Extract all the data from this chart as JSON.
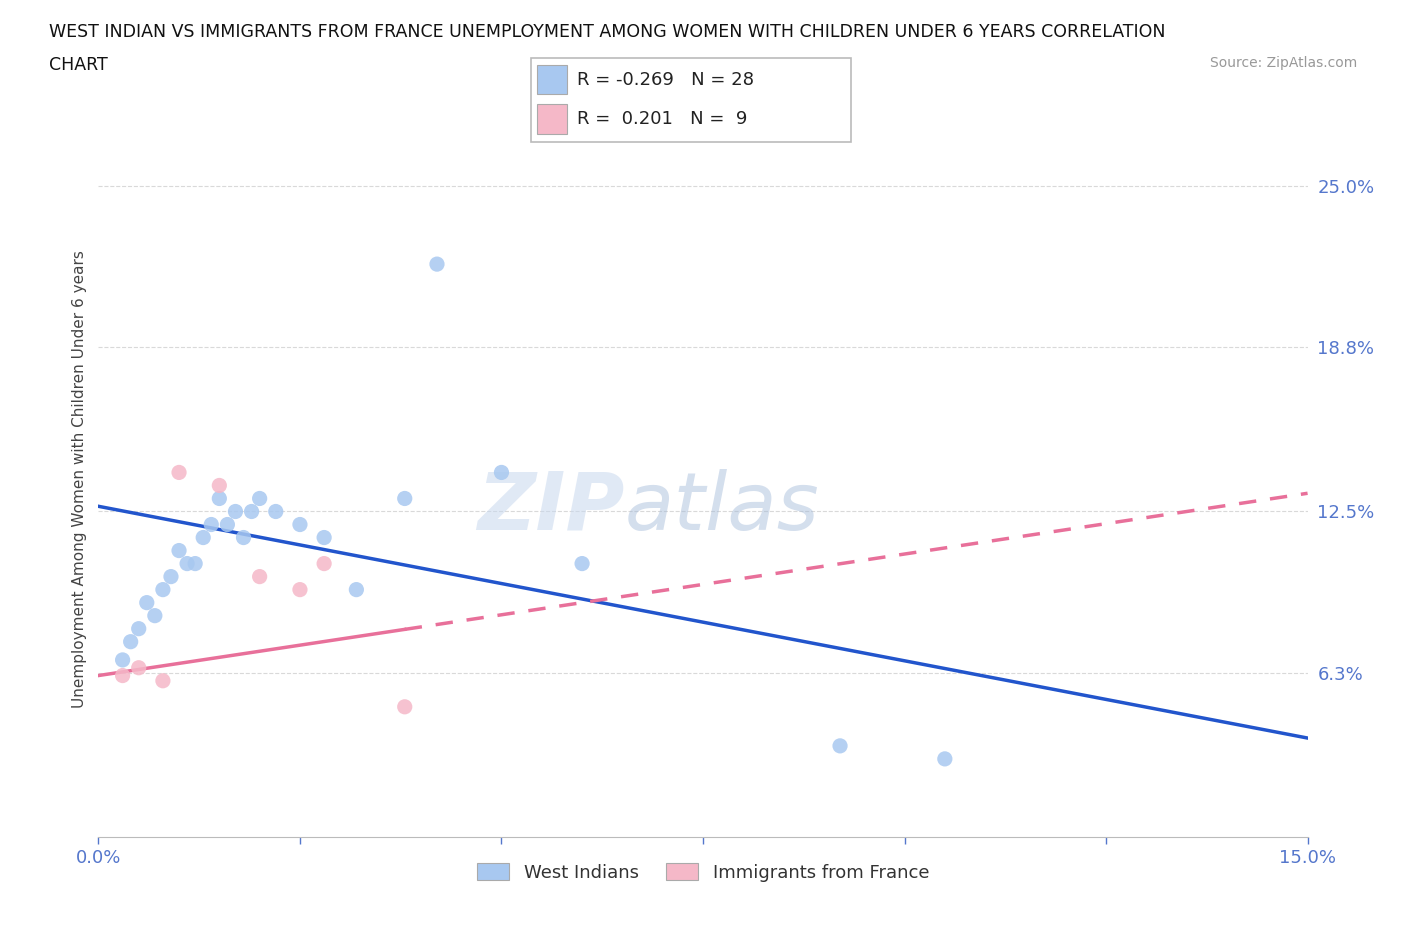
{
  "title_line1": "WEST INDIAN VS IMMIGRANTS FROM FRANCE UNEMPLOYMENT AMONG WOMEN WITH CHILDREN UNDER 6 YEARS CORRELATION",
  "title_line2": "CHART",
  "source": "Source: ZipAtlas.com",
  "ylabel": "Unemployment Among Women with Children Under 6 years",
  "xlim": [
    0.0,
    0.15
  ],
  "ylim": [
    0.0,
    0.275
  ],
  "xticks": [
    0.0,
    0.025,
    0.05,
    0.075,
    0.1,
    0.125,
    0.15
  ],
  "xtick_labels": [
    "0.0%",
    "",
    "",
    "",
    "",
    "",
    "15.0%"
  ],
  "ytick_right_labels": [
    "25.0%",
    "18.8%",
    "12.5%",
    "6.3%"
  ],
  "ytick_right_values": [
    0.25,
    0.188,
    0.125,
    0.063
  ],
  "grid_color": "#d0d0d0",
  "west_indians_color": "#a8c8f0",
  "immigrants_color": "#f5b8c8",
  "regression_west_color": "#2255cc",
  "regression_immigrants_color": "#e8709a",
  "legend_R_west": "-0.269",
  "legend_N_west": "28",
  "legend_R_imm": "0.201",
  "legend_N_imm": "9",
  "west_indians_x": [
    0.003,
    0.004,
    0.005,
    0.006,
    0.007,
    0.008,
    0.009,
    0.01,
    0.011,
    0.012,
    0.013,
    0.014,
    0.015,
    0.016,
    0.017,
    0.018,
    0.019,
    0.02,
    0.022,
    0.025,
    0.028,
    0.032,
    0.038,
    0.042,
    0.05,
    0.06,
    0.092,
    0.105
  ],
  "west_indians_y": [
    0.068,
    0.075,
    0.08,
    0.09,
    0.085,
    0.095,
    0.1,
    0.11,
    0.105,
    0.105,
    0.115,
    0.12,
    0.13,
    0.12,
    0.125,
    0.115,
    0.125,
    0.13,
    0.125,
    0.12,
    0.115,
    0.095,
    0.13,
    0.22,
    0.14,
    0.105,
    0.035,
    0.03
  ],
  "immigrants_x": [
    0.003,
    0.005,
    0.008,
    0.01,
    0.015,
    0.02,
    0.025,
    0.028,
    0.038
  ],
  "immigrants_y": [
    0.062,
    0.065,
    0.06,
    0.14,
    0.135,
    0.1,
    0.095,
    0.105,
    0.05
  ],
  "regression_west_x0": 0.0,
  "regression_west_y0": 0.127,
  "regression_west_x1": 0.15,
  "regression_west_y1": 0.038,
  "regression_imm_x0": 0.0,
  "regression_imm_y0": 0.062,
  "regression_imm_x1": 0.15,
  "regression_imm_y1": 0.132,
  "regression_imm_data_xmax": 0.038
}
